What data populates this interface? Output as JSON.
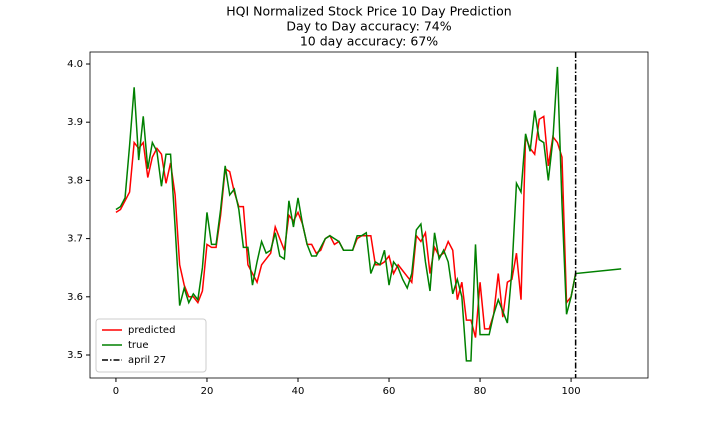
{
  "chart_data": {
    "type": "line",
    "title": "HQI Normalized Stock Price 10 Day Prediction",
    "subtitle": [
      "Day to Day accuracy: 74%",
      "10 day accuracy: 67%"
    ],
    "x": [
      0,
      1,
      2,
      3,
      4,
      5,
      6,
      7,
      8,
      9,
      10,
      11,
      12,
      13,
      14,
      15,
      16,
      17,
      18,
      19,
      20,
      21,
      22,
      23,
      24,
      25,
      26,
      27,
      28,
      29,
      30,
      31,
      32,
      33,
      34,
      35,
      36,
      37,
      38,
      39,
      40,
      41,
      42,
      43,
      44,
      45,
      46,
      47,
      48,
      49,
      50,
      51,
      52,
      53,
      54,
      55,
      56,
      57,
      58,
      59,
      60,
      61,
      62,
      63,
      64,
      65,
      66,
      67,
      68,
      69,
      70,
      71,
      72,
      73,
      74,
      75,
      76,
      77,
      78,
      79,
      80,
      81,
      82,
      83,
      84,
      85,
      86,
      87,
      88,
      89,
      90,
      91,
      92,
      93,
      94,
      95,
      96,
      97,
      98,
      99,
      100,
      101,
      111
    ],
    "series": [
      {
        "name": "predicted",
        "color": "#ff0000",
        "values": [
          3.745,
          3.75,
          3.765,
          3.78,
          3.865,
          3.855,
          3.865,
          3.805,
          3.84,
          3.855,
          3.845,
          3.795,
          3.83,
          3.775,
          3.655,
          3.62,
          3.6,
          3.6,
          3.59,
          3.61,
          3.69,
          3.685,
          3.685,
          3.74,
          3.82,
          3.815,
          3.78,
          3.755,
          3.755,
          3.655,
          3.64,
          3.625,
          3.655,
          3.665,
          3.675,
          3.72,
          3.7,
          3.68,
          3.74,
          3.73,
          3.745,
          3.725,
          3.69,
          3.69,
          3.675,
          3.68,
          3.7,
          3.705,
          3.69,
          3.695,
          3.68,
          3.68,
          3.68,
          3.7,
          3.705,
          3.705,
          3.705,
          3.655,
          3.655,
          3.66,
          3.67,
          3.64,
          3.655,
          3.645,
          3.635,
          3.625,
          3.705,
          3.695,
          3.71,
          3.64,
          3.685,
          3.67,
          3.675,
          3.695,
          3.68,
          3.595,
          3.625,
          3.56,
          3.56,
          3.53,
          3.625,
          3.545,
          3.545,
          3.57,
          3.64,
          3.565,
          3.625,
          3.63,
          3.675,
          3.595,
          3.875,
          3.855,
          3.845,
          3.905,
          3.91,
          3.825,
          3.875,
          3.865,
          3.84,
          3.59,
          3.6,
          3.64,
          null
        ]
      },
      {
        "name": "true",
        "color": "#008000",
        "values": [
          3.75,
          3.755,
          3.77,
          3.86,
          3.96,
          3.835,
          3.91,
          3.82,
          3.865,
          3.85,
          3.79,
          3.845,
          3.845,
          3.72,
          3.585,
          3.615,
          3.59,
          3.605,
          3.595,
          3.65,
          3.745,
          3.69,
          3.69,
          3.75,
          3.825,
          3.775,
          3.785,
          3.75,
          3.685,
          3.685,
          3.62,
          3.66,
          3.695,
          3.675,
          3.68,
          3.71,
          3.67,
          3.665,
          3.765,
          3.72,
          3.77,
          3.725,
          3.69,
          3.67,
          3.67,
          3.685,
          3.7,
          3.705,
          3.7,
          3.695,
          3.68,
          3.68,
          3.68,
          3.705,
          3.705,
          3.71,
          3.64,
          3.66,
          3.655,
          3.68,
          3.62,
          3.66,
          3.65,
          3.63,
          3.615,
          3.64,
          3.715,
          3.725,
          3.66,
          3.61,
          3.71,
          3.665,
          3.68,
          3.66,
          3.605,
          3.63,
          3.6,
          3.49,
          3.49,
          3.69,
          3.535,
          3.535,
          3.535,
          3.57,
          3.595,
          3.575,
          3.555,
          3.645,
          3.795,
          3.78,
          3.88,
          3.85,
          3.92,
          3.87,
          3.865,
          3.8,
          3.87,
          3.995,
          3.76,
          3.57,
          3.6,
          3.64,
          3.648
        ]
      }
    ],
    "vline": {
      "name": "april 27",
      "x": 101,
      "color": "#000000"
    },
    "xlim": [
      -5.7,
      116.9
    ],
    "ylim": [
      3.4605,
      4.0206
    ],
    "xticks": [
      0,
      20,
      40,
      60,
      80,
      100
    ],
    "yticks": [
      3.5,
      3.6,
      3.7,
      3.8,
      3.9,
      {
        "value": 4,
        "label": "4.0"
      }
    ],
    "legend": "lower left"
  }
}
